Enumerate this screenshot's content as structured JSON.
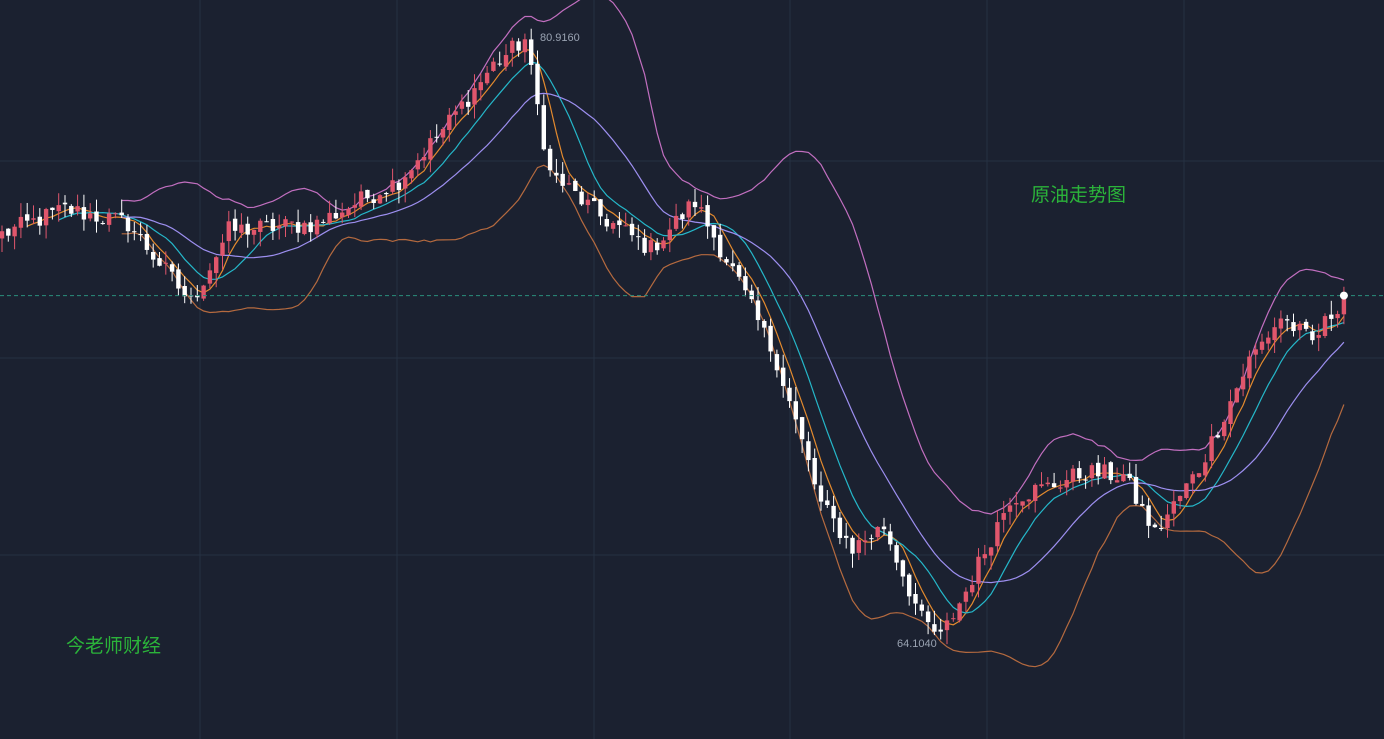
{
  "title": "原油走势图",
  "brand": "今老师财经",
  "colors": {
    "background": "#1b2130",
    "grid": "#263142",
    "up_candle": "#e0566c",
    "down_candle": "#ffffff",
    "ma_fast": "#e38a2e",
    "ma_mid": "#25b7c9",
    "ma_slow": "#9d8ff0",
    "band_upper": "#c26fc0",
    "band_lower": "#b56a3f",
    "current_price_line": "#2a8f7c",
    "label_text": "#2bb33a"
  },
  "chart_data": {
    "type": "candlestick",
    "title": "原油走势图",
    "xlabel": "",
    "ylabel": "",
    "y_range": [
      61.5,
      82.0
    ],
    "grid": true,
    "current_price": 73.8,
    "annotations": [
      {
        "label": "80.9160",
        "value": 80.916,
        "kind": "high"
      },
      {
        "label": "64.1040",
        "value": 64.104,
        "kind": "low"
      }
    ],
    "anchors": [
      [
        0,
        75.5
      ],
      [
        10,
        76.2
      ],
      [
        20,
        75.8
      ],
      [
        30,
        73.6
      ],
      [
        36,
        75.6
      ],
      [
        50,
        75.8
      ],
      [
        63,
        77.0
      ],
      [
        70,
        78.4
      ],
      [
        78,
        80.2
      ],
      [
        83,
        80.9
      ],
      [
        87,
        77.2
      ],
      [
        95,
        76.0
      ],
      [
        103,
        75.1
      ],
      [
        110,
        76.4
      ],
      [
        116,
        74.5
      ],
      [
        123,
        72.0
      ],
      [
        130,
        68.0
      ],
      [
        135,
        66.8
      ],
      [
        140,
        67.4
      ],
      [
        146,
        64.8
      ],
      [
        149,
        64.3
      ],
      [
        153,
        65.6
      ],
      [
        160,
        68.2
      ],
      [
        166,
        68.5
      ],
      [
        172,
        68.9
      ],
      [
        178,
        68.8
      ],
      [
        183,
        67.2
      ],
      [
        190,
        69.0
      ],
      [
        198,
        72.0
      ],
      [
        203,
        73.2
      ],
      [
        208,
        72.5
      ],
      [
        213,
        73.8
      ]
    ],
    "series": [
      {
        "name": "",
        "kind": "candles"
      },
      {
        "name": "",
        "kind": "ma",
        "period": 5,
        "color": "#e38a2e"
      },
      {
        "name": "",
        "kind": "ma",
        "period": 10,
        "color": "#25b7c9"
      },
      {
        "name": "",
        "kind": "ma",
        "period": 20,
        "color": "#9d8ff0"
      },
      {
        "name": "",
        "kind": "bollinger",
        "period": 20,
        "multiplier": 2,
        "upper_color": "#c26fc0",
        "lower_color": "#b56a3f"
      }
    ]
  }
}
